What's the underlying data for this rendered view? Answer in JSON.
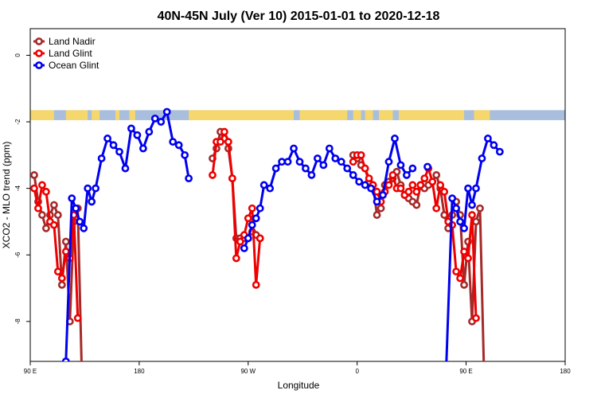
{
  "chart_data": {
    "type": "line",
    "title": "40N-45N July (Ver 10)   2015-01-01 to 2020-12-18",
    "xlabel": "Longitude",
    "ylabel": "XCO2 - MLO trend (ppm)",
    "xlim": [
      -90,
      180
    ],
    "ylim": [
      -9.2,
      0.8
    ],
    "x_ticks": [
      {
        "value": -90,
        "label": "90 E"
      },
      {
        "value": -35,
        "label": "180"
      },
      {
        "value": 20,
        "label": "90 W"
      },
      {
        "value": 75,
        "label": "0"
      },
      {
        "value": 130,
        "label": "90 E"
      },
      {
        "value": 180,
        "label": "180"
      }
    ],
    "y_ticks": [
      {
        "value": 0,
        "label": "0"
      },
      {
        "value": -2,
        "label": "-2"
      },
      {
        "value": -4,
        "label": "-4"
      },
      {
        "value": -6,
        "label": "-6"
      },
      {
        "value": -8,
        "label": "-8"
      }
    ],
    "grid": false,
    "legend_position": "top-left",
    "land_mask_band": {
      "y_top": -1.65,
      "y_bottom": -1.95,
      "land_color": "#f5d76e",
      "ocean_color": "#a8bedc"
    },
    "series": [
      {
        "name": "Land Nadir",
        "color": "#a52a2a",
        "points": [
          [
            -88,
            -3.6
          ],
          [
            -86,
            -4.4
          ],
          [
            -84,
            -4.8
          ],
          [
            -82,
            -5.2
          ],
          [
            -80,
            -4.8
          ],
          [
            -78,
            -4.5
          ],
          [
            -76,
            -4.8
          ],
          [
            -74,
            -6.9
          ],
          [
            -72,
            -5.6
          ],
          [
            -70,
            -8.0
          ],
          [
            -68,
            -5.0
          ],
          [
            -66,
            -4.6
          ],
          [
            -64,
            -9.5
          ],
          [
            2,
            -3.1
          ],
          [
            4,
            -2.8
          ],
          [
            6,
            -2.3
          ],
          [
            8,
            -2.5
          ],
          [
            10,
            -2.8
          ],
          [
            12,
            -3.7
          ],
          [
            14,
            -5.5
          ],
          [
            16,
            -5.5
          ],
          [
            18,
            -5.5
          ],
          [
            20,
            -5.5
          ],
          [
            22,
            -5.3
          ],
          [
            24,
            -5.4
          ],
          [
            26,
            -5.5
          ],
          [
            73,
            -3.0
          ],
          [
            75,
            -3.1
          ],
          [
            77,
            -3.3
          ],
          [
            79,
            -3.4
          ],
          [
            81,
            -3.8
          ],
          [
            83,
            -3.9
          ],
          [
            85,
            -4.8
          ],
          [
            87,
            -4.6
          ],
          [
            89,
            -3.9
          ],
          [
            91,
            -3.8
          ],
          [
            93,
            -3.7
          ],
          [
            95,
            -3.5
          ],
          [
            97,
            -3.9
          ],
          [
            99,
            -4.2
          ],
          [
            101,
            -4.3
          ],
          [
            103,
            -4.4
          ],
          [
            105,
            -4.5
          ],
          [
            107,
            -3.9
          ],
          [
            109,
            -4.0
          ],
          [
            111,
            -3.9
          ],
          [
            113,
            -3.8
          ],
          [
            115,
            -3.6
          ],
          [
            117,
            -4.0
          ],
          [
            119,
            -4.8
          ],
          [
            121,
            -5.2
          ],
          [
            123,
            -4.8
          ],
          [
            125,
            -4.4
          ],
          [
            127,
            -4.8
          ],
          [
            129,
            -6.9
          ],
          [
            131,
            -5.6
          ],
          [
            133,
            -8.0
          ],
          [
            135,
            -5.0
          ],
          [
            137,
            -4.6
          ],
          [
            139,
            -9.5
          ]
        ]
      },
      {
        "name": "Land Glint",
        "color": "#ee0000",
        "points": [
          [
            -88,
            -4.0
          ],
          [
            -86,
            -4.6
          ],
          [
            -84,
            -3.9
          ],
          [
            -82,
            -4.1
          ],
          [
            -80,
            -5.0
          ],
          [
            -78,
            -5.1
          ],
          [
            -76,
            -6.5
          ],
          [
            -74,
            -6.7
          ],
          [
            -72,
            -5.9
          ],
          [
            -70,
            -6.1
          ],
          [
            -68,
            -4.8
          ],
          [
            -66,
            -7.9
          ],
          [
            2,
            -3.6
          ],
          [
            4,
            -2.6
          ],
          [
            6,
            -2.6
          ],
          [
            8,
            -2.3
          ],
          [
            10,
            -2.6
          ],
          [
            12,
            -3.7
          ],
          [
            14,
            -6.1
          ],
          [
            16,
            -5.6
          ],
          [
            18,
            -5.4
          ],
          [
            20,
            -4.9
          ],
          [
            22,
            -4.6
          ],
          [
            24,
            -6.9
          ],
          [
            26,
            -5.5
          ],
          [
            73,
            -3.2
          ],
          [
            75,
            -3.0
          ],
          [
            77,
            -3.0
          ],
          [
            79,
            -3.4
          ],
          [
            81,
            -3.7
          ],
          [
            83,
            -3.9
          ],
          [
            85,
            -4.1
          ],
          [
            87,
            -4.4
          ],
          [
            89,
            -4.1
          ],
          [
            91,
            -3.9
          ],
          [
            93,
            -3.6
          ],
          [
            95,
            -4.0
          ],
          [
            97,
            -4.0
          ],
          [
            99,
            -4.2
          ],
          [
            101,
            -4.1
          ],
          [
            103,
            -3.9
          ],
          [
            105,
            -4.1
          ],
          [
            107,
            -3.9
          ],
          [
            109,
            -3.7
          ],
          [
            111,
            -3.4
          ],
          [
            113,
            -3.8
          ],
          [
            115,
            -4.6
          ],
          [
            117,
            -3.9
          ],
          [
            119,
            -4.1
          ],
          [
            121,
            -5.0
          ],
          [
            123,
            -5.1
          ],
          [
            125,
            -6.5
          ],
          [
            127,
            -6.7
          ],
          [
            129,
            -5.9
          ],
          [
            131,
            -6.1
          ],
          [
            133,
            -4.8
          ],
          [
            135,
            -7.9
          ]
        ]
      },
      {
        "name": "Ocean Glint",
        "color": "#0000ee",
        "points": [
          [
            -72,
            -9.2
          ],
          [
            -69,
            -4.3
          ],
          [
            -67,
            -4.6
          ],
          [
            -65,
            -5.0
          ],
          [
            -63,
            -5.2
          ],
          [
            -61,
            -4.0
          ],
          [
            -59,
            -4.4
          ],
          [
            -57,
            -4.0
          ],
          [
            -54,
            -3.1
          ],
          [
            -51,
            -2.5
          ],
          [
            -48,
            -2.7
          ],
          [
            -45,
            -2.9
          ],
          [
            -42,
            -3.4
          ],
          [
            -39,
            -2.2
          ],
          [
            -36,
            -2.4
          ],
          [
            -33,
            -2.8
          ],
          [
            -30,
            -2.3
          ],
          [
            -27,
            -1.9
          ],
          [
            -24,
            -2.0
          ],
          [
            -21,
            -1.7
          ],
          [
            -18,
            -2.6
          ],
          [
            -15,
            -2.7
          ],
          [
            -12,
            -3.0
          ],
          [
            -10,
            -3.7
          ],
          [
            18,
            -5.8
          ],
          [
            20,
            -5.5
          ],
          [
            22,
            -5.1
          ],
          [
            24,
            -4.9
          ],
          [
            26,
            -4.6
          ],
          [
            28,
            -3.9
          ],
          [
            31,
            -4.0
          ],
          [
            34,
            -3.4
          ],
          [
            37,
            -3.2
          ],
          [
            40,
            -3.2
          ],
          [
            43,
            -2.8
          ],
          [
            46,
            -3.2
          ],
          [
            49,
            -3.4
          ],
          [
            52,
            -3.6
          ],
          [
            55,
            -3.1
          ],
          [
            58,
            -3.3
          ],
          [
            61,
            -2.8
          ],
          [
            64,
            -3.1
          ],
          [
            67,
            -3.2
          ],
          [
            70,
            -3.4
          ],
          [
            73,
            -3.6
          ],
          [
            76,
            -3.8
          ],
          [
            79,
            -3.9
          ],
          [
            82,
            -4.0
          ],
          [
            85,
            -4.4
          ],
          [
            88,
            -4.2
          ],
          [
            91,
            -3.2
          ],
          [
            94,
            -2.5
          ],
          [
            97,
            -3.3
          ],
          [
            100,
            -3.6
          ],
          [
            103,
            -3.4
          ],
          [
            120,
            -9.3
          ],
          [
            123,
            -4.3
          ],
          [
            125,
            -4.6
          ],
          [
            127,
            -5.0
          ],
          [
            129,
            -5.2
          ],
          [
            131,
            -4.0
          ],
          [
            133,
            -4.5
          ],
          [
            135,
            -4.0
          ],
          [
            138,
            -3.1
          ],
          [
            141,
            -2.5
          ],
          [
            144,
            -2.7
          ],
          [
            147,
            -2.9
          ]
        ]
      }
    ]
  }
}
